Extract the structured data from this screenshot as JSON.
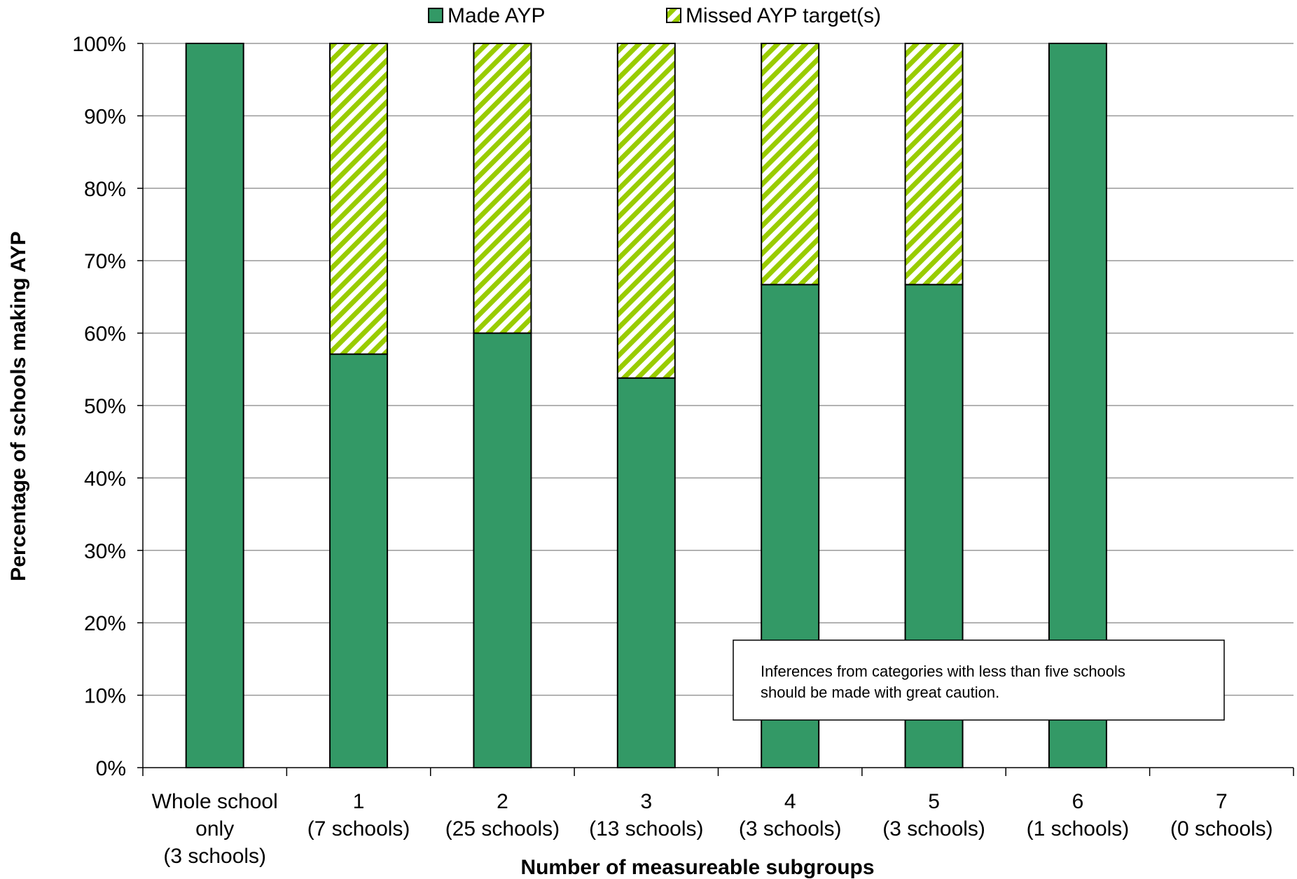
{
  "chart_data": {
    "type": "bar",
    "stacked": true,
    "title": "",
    "xlabel": "Number of measureable subgroups",
    "ylabel": "Percentage of schools making AYP",
    "ylim": [
      0,
      100
    ],
    "y_ticks": [
      "0%",
      "10%",
      "20%",
      "30%",
      "40%",
      "50%",
      "60%",
      "70%",
      "80%",
      "90%",
      "100%"
    ],
    "grid": true,
    "legend_position": "top",
    "categories": [
      [
        "Whole school",
        "only",
        "(3 schools)"
      ],
      [
        "1",
        "(7 schools)"
      ],
      [
        "2",
        "(25 schools)"
      ],
      [
        "3",
        "(13 schools)"
      ],
      [
        "4",
        "(3 schools)"
      ],
      [
        "5",
        "(3 schools)"
      ],
      [
        "6",
        "(1 schools)"
      ],
      [
        "7",
        "(0 schools)"
      ]
    ],
    "series": [
      {
        "name": "Made AYP",
        "color": "#339966",
        "pattern": "solid",
        "values": [
          100,
          57.1,
          60,
          53.8,
          66.7,
          66.7,
          100,
          0
        ]
      },
      {
        "name": "Missed AYP target(s)",
        "color": "#99CC00",
        "pattern": "diagonal-stripes",
        "values": [
          0,
          42.9,
          40,
          46.2,
          33.3,
          33.3,
          0,
          0
        ]
      }
    ],
    "annotation": [
      "Inferences from categories with less than five schools",
      "should be made with great caution."
    ]
  }
}
